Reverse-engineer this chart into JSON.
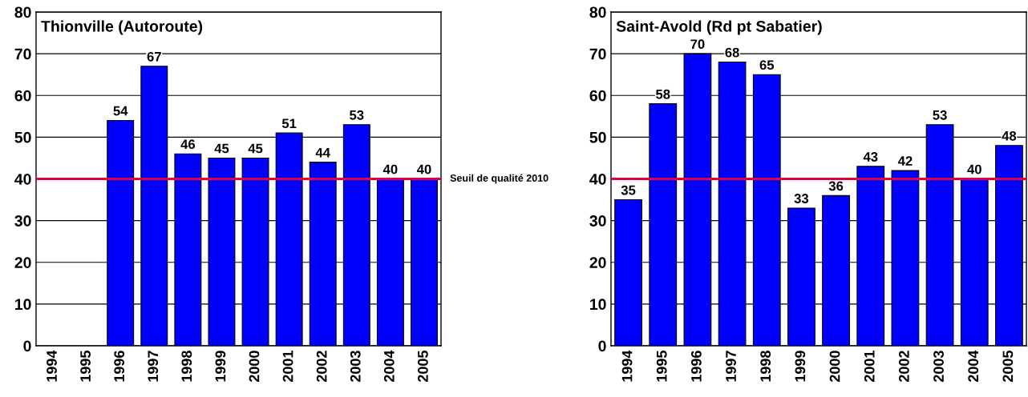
{
  "chart_data": [
    {
      "type": "bar",
      "title": "Thionville (Autoroute)",
      "categories": [
        "1994",
        "1995",
        "1996",
        "1997",
        "1998",
        "1999",
        "2000",
        "2001",
        "2002",
        "2003",
        "2004",
        "2005"
      ],
      "values": [
        null,
        null,
        54,
        67,
        46,
        45,
        45,
        51,
        44,
        53,
        40,
        40
      ],
      "color": "#0000ff",
      "ylim": [
        0,
        80
      ],
      "yticks": [
        0,
        10,
        20,
        30,
        40,
        50,
        60,
        70,
        80
      ],
      "grid": "y",
      "data_labels": true,
      "ref_lines": [
        {
          "axis": "y",
          "value": 40,
          "label": "Seuil de qualité 2010",
          "color": "#e0003c"
        }
      ]
    },
    {
      "type": "bar",
      "title": "Saint-Avold (Rd pt Sabatier)",
      "categories": [
        "1994",
        "1995",
        "1996",
        "1997",
        "1998",
        "1999",
        "2000",
        "2001",
        "2002",
        "2003",
        "2004",
        "2005"
      ],
      "values": [
        35,
        58,
        70,
        68,
        65,
        33,
        36,
        43,
        42,
        53,
        40,
        48
      ],
      "color": "#0000ff",
      "ylim": [
        0,
        80
      ],
      "yticks": [
        0,
        10,
        20,
        30,
        40,
        50,
        60,
        70,
        80
      ],
      "grid": "y",
      "data_labels": true,
      "ref_lines": [
        {
          "axis": "y",
          "value": 40,
          "color": "#e0003c"
        }
      ]
    }
  ]
}
